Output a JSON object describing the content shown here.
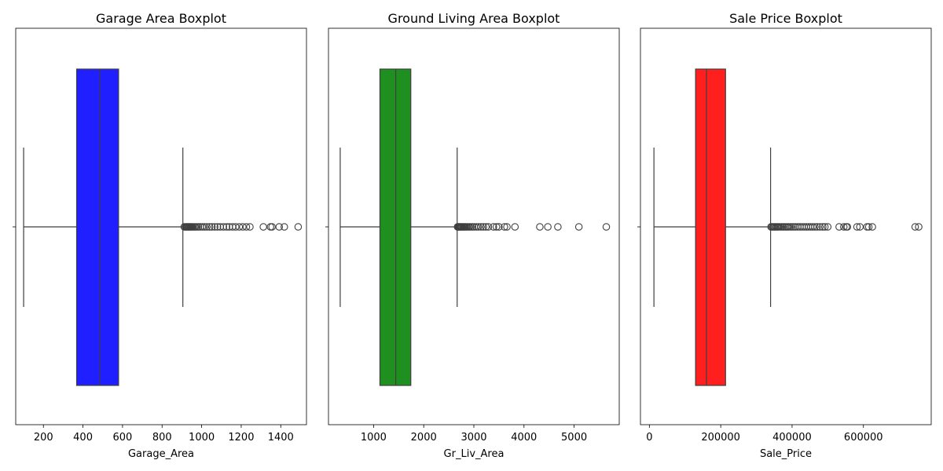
{
  "chart_data": [
    {
      "type": "boxplot",
      "title": "Garage Area Boxplot",
      "xlabel": "Garage_Area",
      "ylabel": "",
      "color": "#0000ff",
      "xlim": [
        60,
        1530
      ],
      "xticks": [
        200,
        400,
        600,
        800,
        1000,
        1200,
        1400
      ],
      "xtick_labels": [
        "200",
        "400",
        "600",
        "800",
        "1000",
        "1200",
        "1400"
      ],
      "stats": {
        "whisker_low": 100,
        "q1": 368,
        "median": 484,
        "q3": 580,
        "whisker_high": 905
      },
      "outliers": [
        912,
        918,
        922,
        926,
        930,
        934,
        938,
        942,
        946,
        950,
        956,
        962,
        968,
        976,
        984,
        994,
        1004,
        1014,
        1026,
        1040,
        1052,
        1066,
        1080,
        1094,
        1110,
        1126,
        1140,
        1156,
        1172,
        1190,
        1208,
        1226,
        1244,
        1312,
        1348,
        1356,
        1392,
        1418,
        1488
      ]
    },
    {
      "type": "boxplot",
      "title": "Ground Living Area Boxplot",
      "xlabel": "Gr_Liv_Area",
      "ylabel": "",
      "color": "#008000",
      "xlim": [
        100,
        5900
      ],
      "xticks": [
        1000,
        2000,
        3000,
        4000,
        5000
      ],
      "xtick_labels": [
        "1000",
        "2000",
        "3000",
        "4000",
        "5000"
      ],
      "stats": {
        "whisker_low": 334,
        "q1": 1126,
        "median": 1442,
        "q3": 1742,
        "whisker_high": 2667
      },
      "outliers": [
        2675,
        2690,
        2702,
        2715,
        2728,
        2740,
        2755,
        2770,
        2788,
        2805,
        2822,
        2840,
        2862,
        2885,
        2910,
        2940,
        2975,
        3010,
        3050,
        3090,
        3140,
        3190,
        3240,
        3290,
        3390,
        3450,
        3500,
        3610,
        3660,
        3820,
        4316,
        4476,
        4676,
        5095,
        5642
      ]
    },
    {
      "type": "boxplot",
      "title": "Sale Price Boxplot",
      "xlabel": "Sale_Price",
      "ylabel": "",
      "color": "#ff0000",
      "xlim": [
        -25000,
        790000
      ],
      "xticks": [
        0,
        200000,
        400000,
        600000
      ],
      "xtick_labels": [
        "0",
        "200000",
        "400000",
        "600000"
      ],
      "stats": {
        "whisker_low": 12789,
        "q1": 129500,
        "median": 160000,
        "q3": 213500,
        "whisker_high": 339750
      },
      "outliers": [
        341000,
        344000,
        347000,
        350000,
        353000,
        356000,
        359000,
        362000,
        366000,
        370000,
        374000,
        378000,
        382000,
        386000,
        390000,
        395000,
        400000,
        405000,
        410000,
        416000,
        422000,
        428000,
        434000,
        440000,
        446000,
        452000,
        458000,
        464000,
        470000,
        478000,
        486000,
        492000,
        500000,
        532000,
        545000,
        552000,
        555000,
        582000,
        590000,
        610000,
        615000,
        625000,
        745000,
        755000
      ]
    }
  ]
}
